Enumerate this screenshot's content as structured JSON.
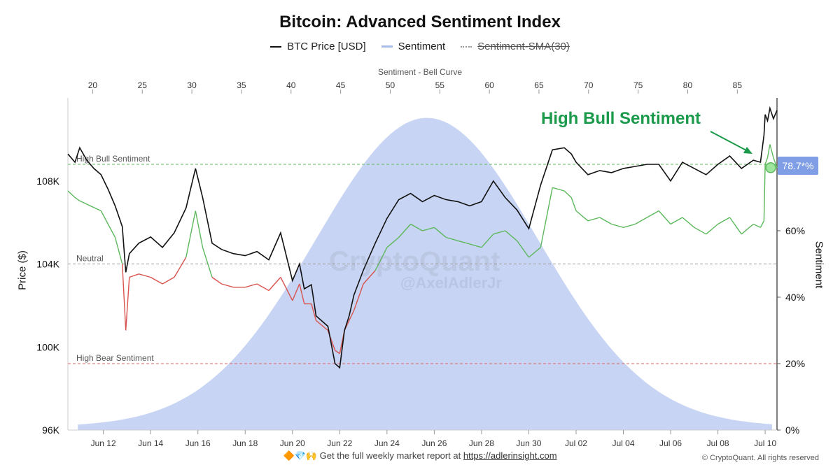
{
  "title": "Bitcoin: Advanced Sentiment Index",
  "legend": [
    {
      "label": "BTC Price [USD]",
      "color": "#111111"
    },
    {
      "label": "Sentiment",
      "color": "#a9bde9"
    },
    {
      "label": "Sentiment-SMA(30)",
      "color": "#999999",
      "disabled": true
    }
  ],
  "top_axis_title": "Sentiment - Bell Curve",
  "left_axis_title": "Price ($)",
  "right_axis_title": "Sentiment",
  "callout": "High Bull Sentiment",
  "current_badge": "78.7*%",
  "watermark": "CryptoQuant",
  "watermark_author": "@AxelAdlerJr",
  "footer": {
    "icons": "🔶💎🙌",
    "text": "Get the full weekly market report at",
    "link": "https://adlerinsight.com"
  },
  "copyright": "© CryptoQuant. All rights reserved",
  "colors": {
    "price": "#111111",
    "bull": "#5cb85c",
    "bear": "#d9534f",
    "bell": "#c7d4f3",
    "bull_line": "#5cb85c",
    "neutral_line": "#999999",
    "bear_line": "#e06666"
  },
  "chart_data": {
    "type": "line",
    "x_tick_labels": [
      "Jun 12",
      "Jun 14",
      "Jun 16",
      "Jun 18",
      "Jun 20",
      "Jun 22",
      "Jun 24",
      "Jun 26",
      "Jun 28",
      "Jun 30",
      "Jul 02",
      "Jul 04",
      "Jul 06",
      "Jul 08",
      "Jul 10"
    ],
    "top_tick_labels": [
      "20",
      "25",
      "30",
      "35",
      "40",
      "45",
      "50",
      "55",
      "60",
      "65",
      "70",
      "75",
      "80",
      "85"
    ],
    "left_ticks": [
      "96K",
      "100K",
      "104K",
      "108K"
    ],
    "left_tick_values": [
      96000,
      100000,
      104000,
      108000
    ],
    "right_ticks": [
      "0%",
      "20%",
      "40%",
      "60%"
    ],
    "right_tick_values": [
      0,
      20,
      40,
      60
    ],
    "price_ylim": [
      96000,
      112000
    ],
    "sentiment_ylim": [
      0,
      100
    ],
    "bell_xlim": [
      17.5,
      89
    ],
    "bell_curve": {
      "mean": 53.7,
      "sd": 11.2,
      "peak_pct": 93
    },
    "reference_lines": [
      {
        "label": "High Bull Sentiment",
        "value": 80,
        "kind": "bull"
      },
      {
        "label": "Neutral",
        "value": 50,
        "kind": "neutral"
      },
      {
        "label": "High Bear Sentiment",
        "value": 20,
        "kind": "bear"
      }
    ],
    "x_start_day": 10.5,
    "x_end_day": 40.5,
    "series": [
      {
        "name": "BTC Price [USD]",
        "x_days": [
          10.5,
          10.8,
          11.0,
          11.3,
          11.6,
          11.9,
          12.2,
          12.5,
          12.8,
          12.95,
          13.1,
          13.5,
          14.0,
          14.5,
          15.0,
          15.5,
          15.9,
          16.2,
          16.6,
          17.0,
          17.5,
          18.0,
          18.5,
          19.0,
          19.5,
          20.0,
          20.3,
          20.5,
          20.8,
          21.0,
          21.5,
          21.8,
          22.0,
          22.2,
          22.4,
          22.6,
          23.0,
          23.5,
          24.0,
          24.5,
          25.0,
          25.5,
          26.0,
          26.5,
          27.0,
          27.5,
          28.0,
          28.5,
          29.0,
          29.5,
          30.0,
          30.5,
          31.0,
          31.5,
          31.8,
          32.0,
          32.5,
          33.0,
          33.5,
          34.0,
          34.5,
          35.0,
          35.5,
          36.0,
          36.5,
          37.0,
          37.5,
          38.0,
          38.5,
          39.0,
          39.5,
          39.8,
          39.95,
          40.0,
          40.1,
          40.2,
          40.35,
          40.5
        ],
        "values": [
          109300,
          108900,
          109600,
          109000,
          108600,
          108300,
          107600,
          106800,
          105800,
          103600,
          104500,
          105000,
          105300,
          104800,
          105500,
          106700,
          108600,
          107200,
          105000,
          104700,
          104500,
          104400,
          104600,
          104200,
          105500,
          103200,
          104000,
          102800,
          103000,
          101500,
          101000,
          99200,
          99000,
          100800,
          101500,
          102500,
          103700,
          105000,
          106200,
          107100,
          107400,
          107000,
          107300,
          107100,
          107000,
          106800,
          107000,
          108000,
          107200,
          106600,
          105700,
          107800,
          109500,
          109600,
          109300,
          108900,
          108300,
          108500,
          108400,
          108600,
          108700,
          108800,
          108800,
          108000,
          108900,
          108600,
          108300,
          108800,
          109200,
          108600,
          109000,
          108900,
          110200,
          111200,
          110900,
          111500,
          111000,
          111400
        ]
      },
      {
        "name": "Sentiment",
        "x_days": [
          10.5,
          10.8,
          11.0,
          11.3,
          11.6,
          11.9,
          12.2,
          12.5,
          12.8,
          12.95,
          13.1,
          13.5,
          14.0,
          14.5,
          15.0,
          15.5,
          15.9,
          16.2,
          16.6,
          17.0,
          17.5,
          18.0,
          18.5,
          19.0,
          19.5,
          20.0,
          20.3,
          20.5,
          20.8,
          21.0,
          21.5,
          21.8,
          22.0,
          22.2,
          22.4,
          22.6,
          23.0,
          23.5,
          24.0,
          24.5,
          25.0,
          25.5,
          26.0,
          26.5,
          27.0,
          27.5,
          28.0,
          28.5,
          29.0,
          29.5,
          30.0,
          30.5,
          31.0,
          31.5,
          31.8,
          32.0,
          32.5,
          33.0,
          33.5,
          34.0,
          34.5,
          35.0,
          35.5,
          36.0,
          36.5,
          37.0,
          37.5,
          38.0,
          38.5,
          39.0,
          39.5,
          39.8,
          39.95,
          40.0,
          40.1,
          40.2,
          40.35,
          40.5
        ],
        "values": [
          72,
          70,
          69,
          68,
          67,
          66,
          62,
          58,
          50,
          30,
          46,
          47,
          46,
          44,
          46,
          52,
          66,
          55,
          46,
          44,
          43,
          43,
          44,
          42,
          46,
          39,
          44,
          38,
          38,
          33,
          30,
          24,
          23,
          30,
          33,
          36,
          44,
          48,
          55,
          58,
          62,
          60,
          61,
          58,
          57,
          56,
          55,
          59,
          60,
          57,
          52,
          55,
          73,
          72,
          70,
          66,
          63,
          64,
          62,
          61,
          62,
          64,
          66,
          62,
          64,
          61,
          59,
          62,
          64,
          59,
          62,
          61,
          63,
          80,
          82,
          86,
          82,
          79
        ]
      }
    ]
  }
}
